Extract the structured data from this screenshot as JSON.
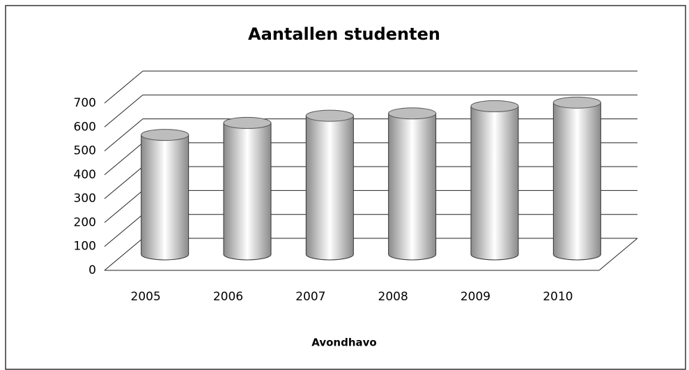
{
  "chart_data": {
    "type": "bar3d",
    "title": "Aantallen studenten",
    "x_label": "Avondhavo",
    "categories": [
      "2005",
      "2006",
      "2007",
      "2008",
      "2009",
      "2010"
    ],
    "values": [
      500,
      550,
      580,
      590,
      620,
      635
    ],
    "color": "#bdbdbd",
    "ylim": [
      0,
      700
    ],
    "yticks": [
      0,
      100,
      200,
      300,
      400,
      500,
      600,
      700
    ],
    "grid": true
  }
}
